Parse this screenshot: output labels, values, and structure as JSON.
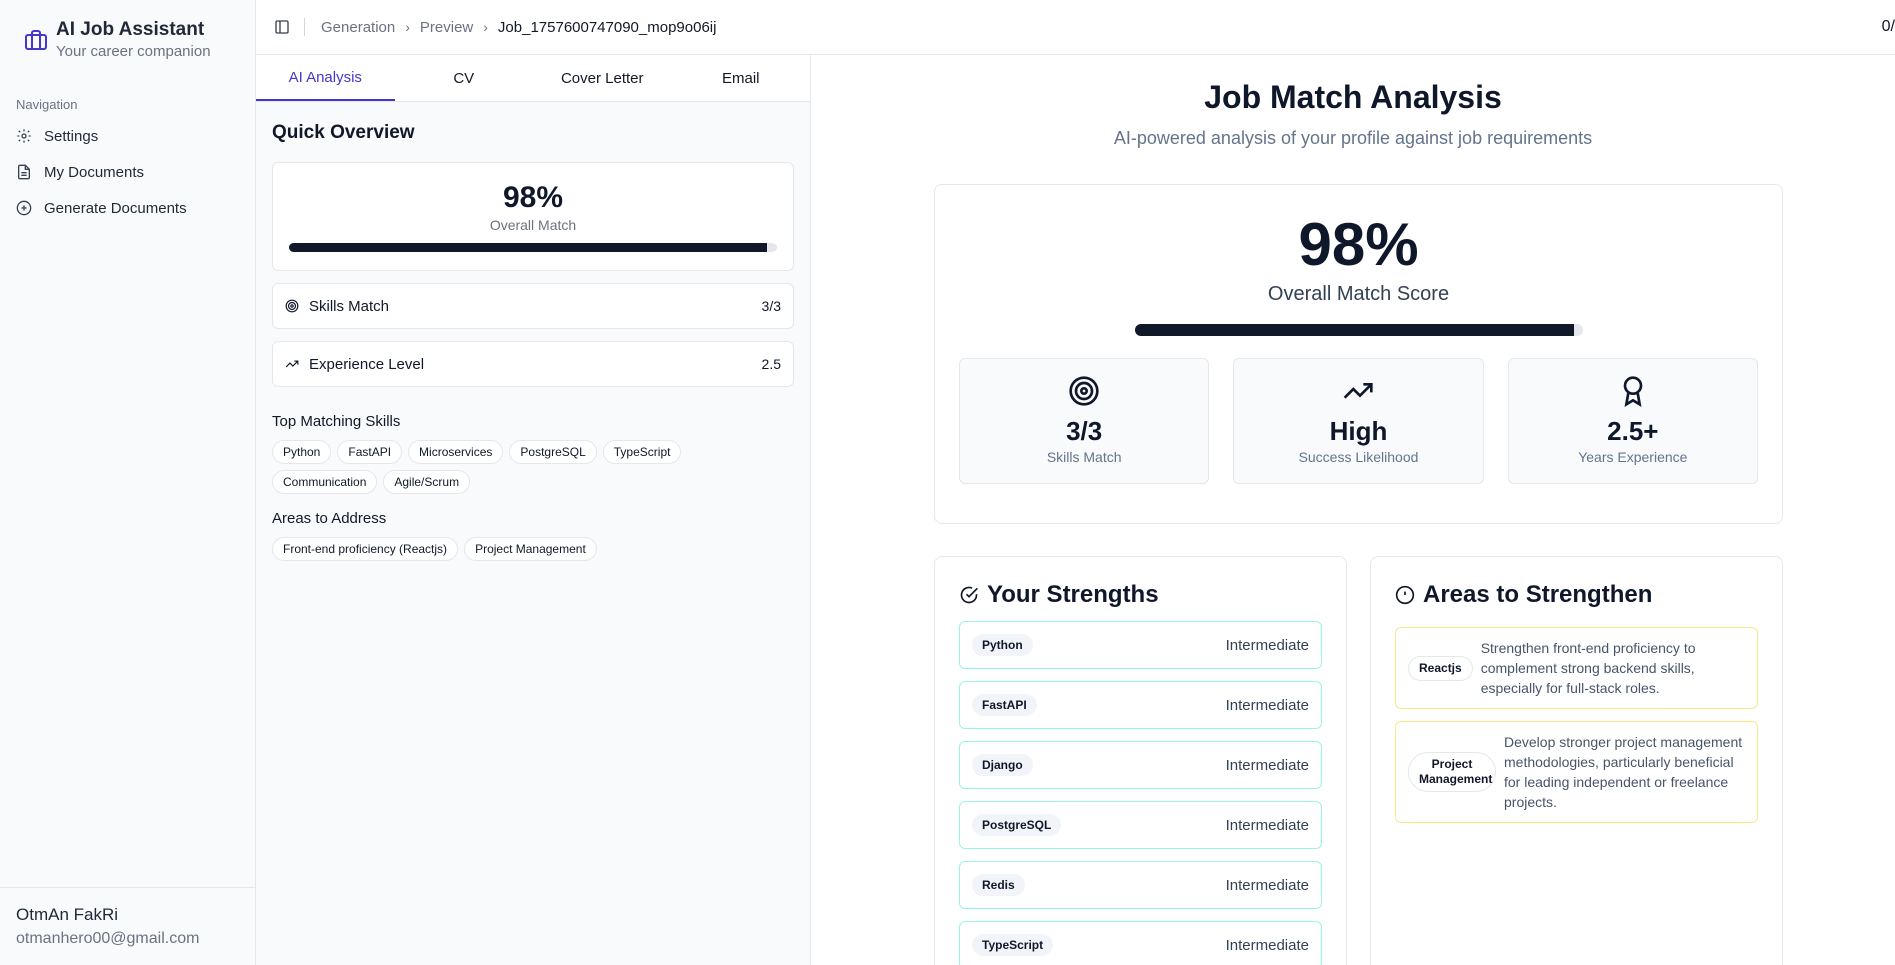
{
  "app": {
    "title": "AI Job Assistant",
    "subtitle": "Your career companion"
  },
  "nav": {
    "label": "Navigation",
    "items": [
      {
        "label": "Settings",
        "icon": "gear-icon"
      },
      {
        "label": "My Documents",
        "icon": "document-icon"
      },
      {
        "label": "Generate Documents",
        "icon": "plus-circle-icon"
      }
    ]
  },
  "user": {
    "name": "OtmAn FakRi",
    "email": "otmanhero00@gmail.com"
  },
  "breadcrumb": [
    "Generation",
    "Preview",
    "Job_1757600747090_mop9o06ij"
  ],
  "counter": "0/",
  "tabs": [
    "AI Analysis",
    "CV",
    "Cover Letter",
    "Email"
  ],
  "overview": {
    "title": "Quick Overview",
    "overall_pct": "98%",
    "overall_label": "Overall Match",
    "overall_fraction": 0.98,
    "skills_label": "Skills Match",
    "skills_value": "3/3",
    "exp_label": "Experience Level",
    "exp_value": "2.5",
    "top_skills_title": "Top Matching Skills",
    "top_skills": [
      "Python",
      "FastAPI",
      "Microservices",
      "PostgreSQL",
      "TypeScript",
      "Communication",
      "Agile/Scrum"
    ],
    "areas_title": "Areas to Address",
    "areas": [
      "Front-end proficiency (Reactjs)",
      "Project Management"
    ]
  },
  "analysis": {
    "title": "Job Match Analysis",
    "subtitle": "AI-powered analysis of your profile against job requirements",
    "score": "98%",
    "score_label": "Overall Match Score",
    "score_fraction": 0.98,
    "stats": [
      {
        "value": "3/3",
        "label": "Skills Match",
        "icon": "target-icon"
      },
      {
        "value": "High",
        "label": "Success Likelihood",
        "icon": "trending-up-icon"
      },
      {
        "value": "2.5+",
        "label": "Years Experience",
        "icon": "award-icon"
      }
    ]
  },
  "strengths": {
    "title": "Your Strengths",
    "items": [
      {
        "skill": "Python",
        "level": "Intermediate"
      },
      {
        "skill": "FastAPI",
        "level": "Intermediate"
      },
      {
        "skill": "Django",
        "level": "Intermediate"
      },
      {
        "skill": "PostgreSQL",
        "level": "Intermediate"
      },
      {
        "skill": "Redis",
        "level": "Intermediate"
      },
      {
        "skill": "TypeScript",
        "level": "Intermediate"
      }
    ]
  },
  "improve": {
    "title": "Areas to Strengthen",
    "items": [
      {
        "tag": "Reactjs",
        "text": "Strengthen front-end proficiency to complement strong backend skills, especially for full-stack roles."
      },
      {
        "tag": "Project Management",
        "text": "Develop stronger project management methodologies, particularly beneficial for leading independent or freelance projects."
      }
    ]
  },
  "colors": {
    "accent": "#4338ca",
    "strength_border": "#99f6e4",
    "area_border": "#fde68a",
    "bar": "#111827"
  }
}
